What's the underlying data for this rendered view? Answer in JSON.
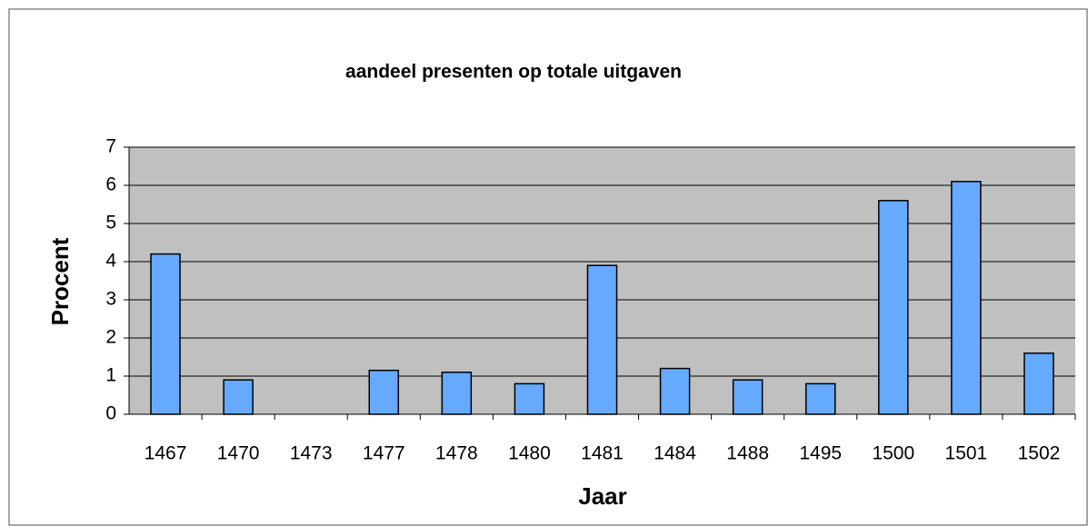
{
  "chart_data": {
    "type": "bar",
    "title": "aandeel presenten op totale uitgaven",
    "x_label": "Jaar",
    "y_label": "Procent",
    "categories": [
      "1467",
      "1470",
      "1473",
      "1477",
      "1478",
      "1480",
      "1481",
      "1484",
      "1488",
      "1495",
      "1500",
      "1501",
      "1502"
    ],
    "values": [
      4.2,
      0.9,
      0,
      1.15,
      1.1,
      0.8,
      3.9,
      1.2,
      0.9,
      0.8,
      5.6,
      6.1,
      1.6
    ],
    "color": "#66aaff",
    "ylim": [
      0,
      7
    ],
    "yticks": [
      0,
      1,
      2,
      3,
      4,
      5,
      6,
      7
    ],
    "grid": true
  }
}
